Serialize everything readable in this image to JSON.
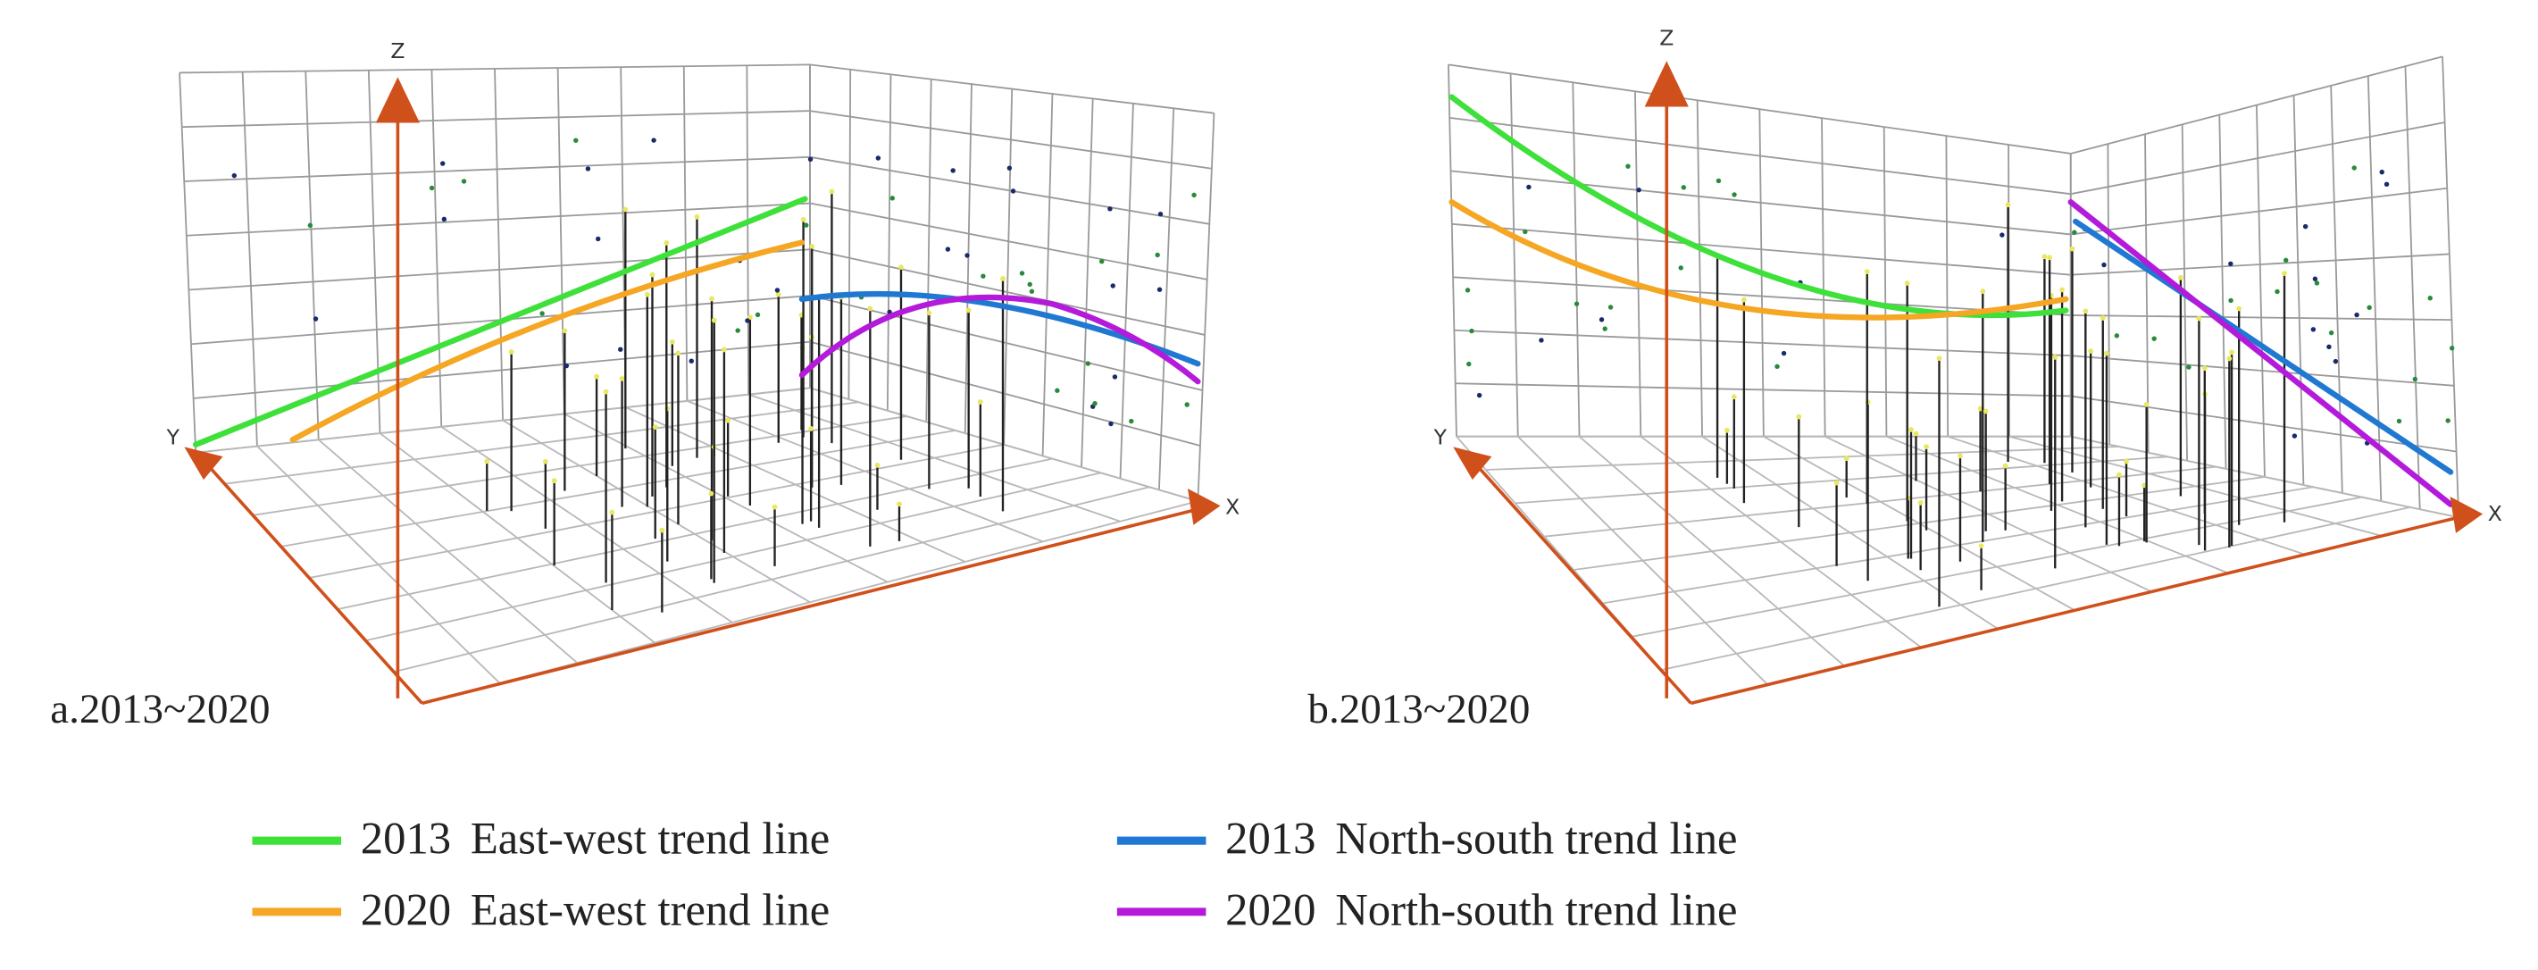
{
  "panels": [
    {
      "label": "a.2013~2020",
      "axes": {
        "x": "X",
        "y": "Y",
        "z": "Z"
      }
    },
    {
      "label": "b.2013~2020",
      "axes": {
        "x": "X",
        "y": "Y",
        "z": "Z"
      }
    }
  ],
  "legend": [
    {
      "year": "2013",
      "text": "East-west trend line",
      "color": "#3ee03a"
    },
    {
      "year": "2020",
      "text": "East-west trend line",
      "color": "#f5a623"
    },
    {
      "year": "2013",
      "text": "North-south trend line",
      "color": "#1f78d1"
    },
    {
      "year": "2020",
      "text": "North-south trend line",
      "color": "#b31ad9"
    }
  ]
}
